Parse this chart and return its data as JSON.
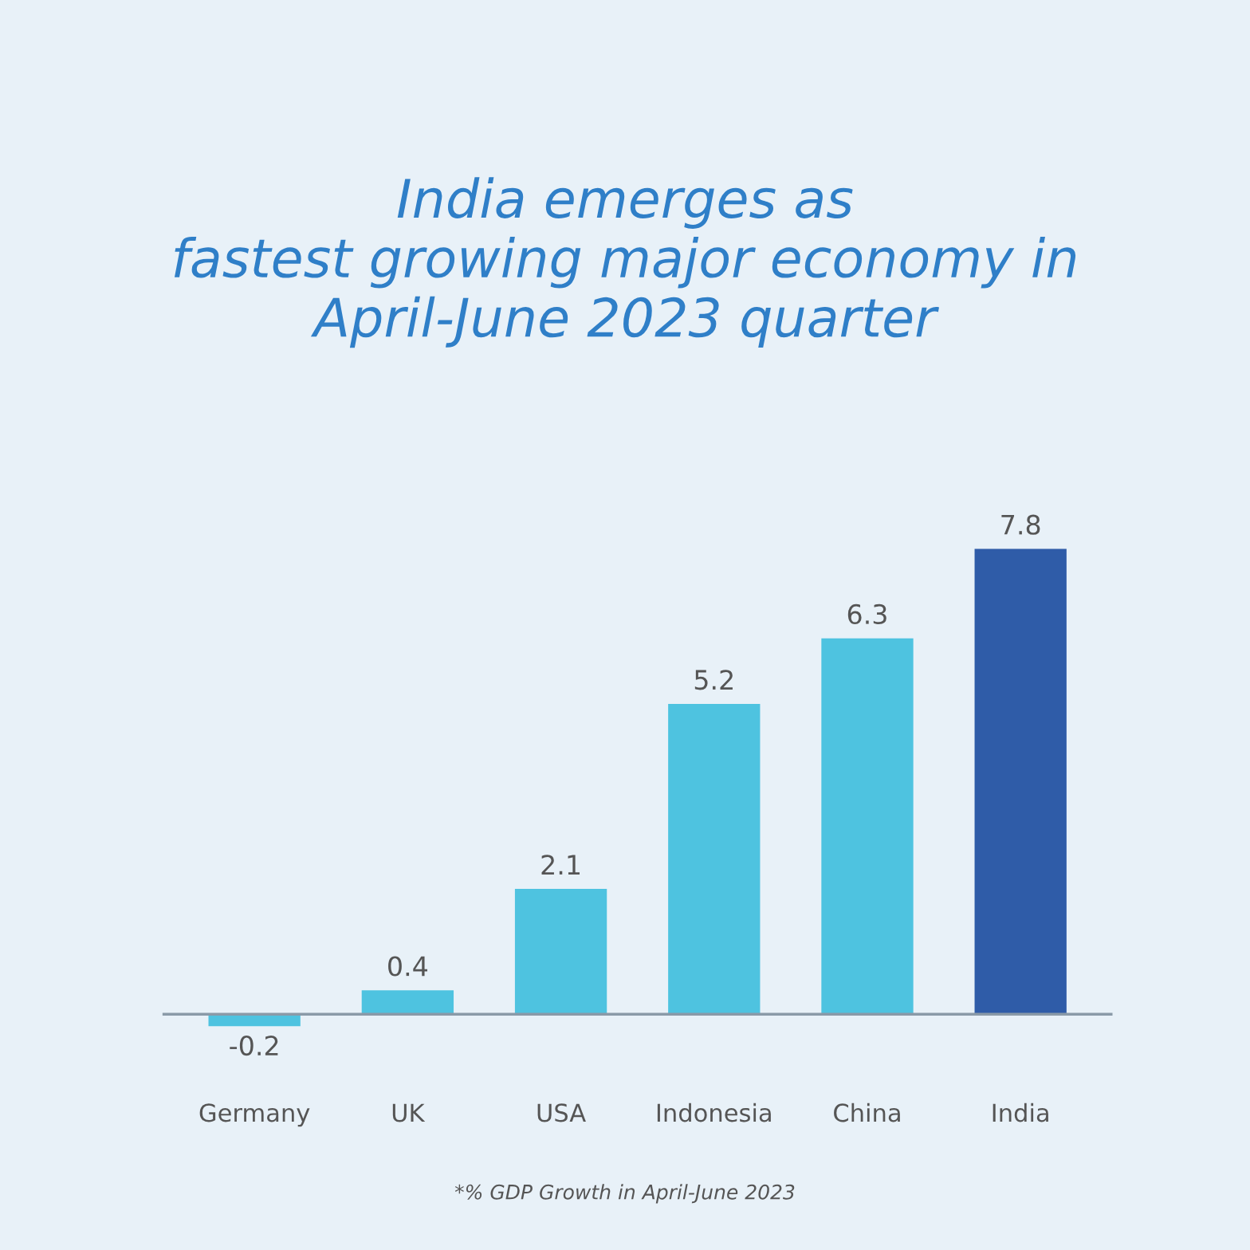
{
  "chart_data": {
    "type": "bar",
    "title": "India emerges as\nfastest growing major economy in\nApril-June 2023 quarter",
    "categories": [
      "Germany",
      "UK",
      "USA",
      "Indonesia",
      "China",
      "India"
    ],
    "values": [
      -0.2,
      0.4,
      2.1,
      5.2,
      6.3,
      7.8
    ],
    "colors": [
      "#4ec3e0",
      "#4ec3e0",
      "#4ec3e0",
      "#4ec3e0",
      "#4ec3e0",
      "#2f5ca8"
    ],
    "data_labels": true,
    "annotations": [
      "*% GDP Growth in April-June 2023"
    ]
  }
}
